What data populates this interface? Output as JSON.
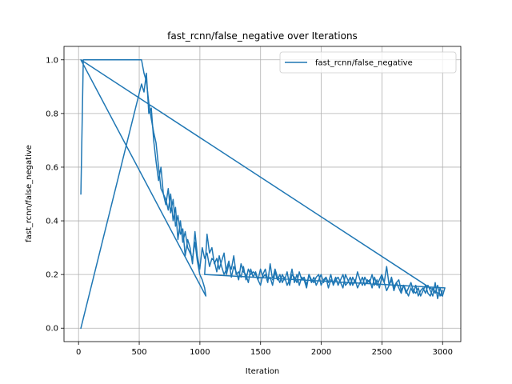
{
  "chart_data": {
    "type": "line",
    "title": "fast_rcnn/false_negative over Iterations",
    "xlabel": "Iteration",
    "ylabel": "fast_rcnn/false_negative",
    "xlim": [
      -120,
      3150
    ],
    "ylim": [
      -0.05,
      1.05
    ],
    "xticks": [
      0,
      500,
      1000,
      1500,
      2000,
      2500,
      3000
    ],
    "yticks": [
      0.0,
      0.2,
      0.4,
      0.6,
      0.8,
      1.0
    ],
    "xtick_labels": [
      "0",
      "500",
      "1000",
      "1500",
      "2000",
      "2500",
      "3000"
    ],
    "ytick_labels": [
      "0.0",
      "0.2",
      "0.4",
      "0.6",
      "0.8",
      "1.0"
    ],
    "grid": true,
    "legend_position": "top-right",
    "series_color": "#1f77b4",
    "series": [
      {
        "name": "fast_rcnn/false_negative",
        "x": [
          19,
          39,
          59,
          79,
          99,
          119,
          139,
          159,
          179,
          199,
          219,
          239,
          259,
          279,
          299,
          319,
          339,
          359,
          379,
          399,
          419,
          439,
          459,
          479,
          499,
          519,
          539,
          559,
          579,
          599,
          619,
          639,
          659,
          679,
          699,
          719,
          739,
          759,
          779,
          799,
          819,
          839,
          859,
          879,
          899,
          919,
          939,
          959,
          979,
          999,
          1019,
          1039,
          1049,
          19,
          2999,
          3019,
          1039,
          1059,
          1079,
          1099,
          1119,
          1139,
          1159,
          1179,
          1199,
          1219,
          1239,
          1259,
          1279,
          1299,
          1319,
          1339,
          1359,
          1379,
          1399,
          1419,
          1439,
          1459,
          1479,
          1499,
          1519,
          1539,
          1559,
          1579,
          1599,
          1619,
          1639,
          1659,
          1679,
          1699,
          1719,
          1739,
          1759,
          1779,
          1799,
          1819,
          1839,
          1859,
          1879,
          1899,
          1919,
          1939,
          1959,
          1979,
          1999,
          2019,
          2039,
          2059,
          2079,
          2099,
          2119,
          2139,
          2159,
          2179,
          2199,
          2219,
          2239,
          2259,
          2279,
          2299,
          2319,
          2339,
          2359,
          2379,
          2399,
          2419,
          2439,
          2459,
          2479,
          2499,
          2519,
          2539,
          2559,
          2579,
          2599,
          2619,
          2639,
          2659,
          2679,
          2699,
          2719,
          2739,
          2759,
          2779,
          2799,
          2819,
          2839,
          2859,
          2879,
          2899,
          2919,
          2939,
          2959,
          2979,
          2999
        ],
        "y": [
          0.5,
          1.0,
          1.0,
          1.0,
          1.0,
          1.0,
          1.0,
          1.0,
          1.0,
          1.0,
          1.0,
          1.0,
          1.0,
          1.0,
          1.0,
          1.0,
          1.0,
          1.0,
          1.0,
          1.0,
          1.0,
          1.0,
          1.0,
          1.0,
          1.0,
          1.0,
          0.95,
          0.92,
          0.84,
          0.78,
          0.73,
          0.69,
          0.6,
          0.52,
          0.5,
          0.48,
          0.44,
          0.5,
          0.4,
          0.45,
          0.33,
          0.4,
          0.32,
          0.36,
          0.3,
          0.28,
          0.26,
          0.32,
          0.25,
          0.2,
          0.18,
          0.15,
          0.12,
          1.0,
          0.12,
          0.15,
          0.2,
          0.35,
          0.28,
          0.3,
          0.24,
          0.26,
          0.22,
          0.25,
          0.28,
          0.2,
          0.24,
          0.22,
          0.27,
          0.2,
          0.21,
          0.19,
          0.23,
          0.18,
          0.22,
          0.2,
          0.21,
          0.2,
          0.18,
          0.22,
          0.19,
          0.2,
          0.17,
          0.24,
          0.18,
          0.22,
          0.19,
          0.17,
          0.2,
          0.18,
          0.21,
          0.16,
          0.2,
          0.19,
          0.17,
          0.21,
          0.18,
          0.19,
          0.16,
          0.2,
          0.18,
          0.17,
          0.19,
          0.2,
          0.16,
          0.18,
          0.19,
          0.17,
          0.2,
          0.16,
          0.18,
          0.19,
          0.17,
          0.15,
          0.2,
          0.18,
          0.16,
          0.19,
          0.17,
          0.21,
          0.18,
          0.16,
          0.19,
          0.17,
          0.18,
          0.15,
          0.19,
          0.16,
          0.18,
          0.2,
          0.17,
          0.14,
          0.16,
          0.19,
          0.15,
          0.17,
          0.18,
          0.14,
          0.16,
          0.13,
          0.15,
          0.17,
          0.14,
          0.13,
          0.15,
          0.12,
          0.14,
          0.16,
          0.13,
          0.12,
          0.15,
          0.13,
          0.16,
          0.12,
          0.14
        ]
      },
      {
        "name": "",
        "x": [
          19,
          519,
          539,
          559,
          579,
          599,
          619,
          639,
          659,
          679,
          699,
          719,
          739,
          759,
          779,
          799,
          819,
          839,
          859,
          879,
          899,
          919,
          939,
          959,
          979,
          999,
          1019,
          1039,
          1059,
          1079,
          1099,
          1119,
          1139,
          1159,
          1179,
          1199,
          1219,
          1239,
          1259,
          1279,
          1299,
          1319,
          1339,
          1359,
          1379,
          1399,
          1419,
          1439,
          1459,
          1479,
          1499,
          1519,
          1539,
          1559,
          1579,
          1599,
          1619,
          1639,
          1659,
          1679,
          1699,
          1719,
          1739,
          1759,
          1779,
          1799,
          1819,
          1839,
          1859,
          1879,
          1899,
          1919,
          1939,
          1959,
          1979,
          1999,
          2019,
          2039,
          2059,
          2079,
          2099,
          2119,
          2139,
          2159,
          2179,
          2199,
          2219,
          2239,
          2259,
          2279,
          2299,
          2319,
          2339,
          2359,
          2379,
          2399,
          2419,
          2439,
          2459,
          2479,
          2499,
          2519,
          2539,
          2559,
          2579,
          2599,
          2619,
          2639,
          2659,
          2679,
          2699,
          2719,
          2739,
          2759,
          2779,
          2799,
          2819,
          2839,
          2859,
          2879,
          2899,
          2919,
          2939,
          2959,
          2979,
          2999
        ],
        "y": [
          0.0,
          0.91,
          0.88,
          0.95,
          0.8,
          0.82,
          0.7,
          0.62,
          0.55,
          0.6,
          0.5,
          0.46,
          0.52,
          0.43,
          0.48,
          0.38,
          0.42,
          0.35,
          0.37,
          0.27,
          0.33,
          0.3,
          0.24,
          0.36,
          0.27,
          0.22,
          0.3,
          0.26,
          0.28,
          0.23,
          0.26,
          0.25,
          0.21,
          0.27,
          0.23,
          0.2,
          0.22,
          0.25,
          0.19,
          0.23,
          0.21,
          0.18,
          0.24,
          0.21,
          0.2,
          0.17,
          0.22,
          0.19,
          0.21,
          0.18,
          0.16,
          0.2,
          0.22,
          0.18,
          0.19,
          0.16,
          0.21,
          0.18,
          0.2,
          0.17,
          0.19,
          0.16,
          0.18,
          0.22,
          0.17,
          0.2,
          0.16,
          0.19,
          0.18,
          0.15,
          0.2,
          0.17,
          0.19,
          0.16,
          0.18,
          0.2,
          0.17,
          0.19,
          0.15,
          0.18,
          0.17,
          0.19,
          0.16,
          0.18,
          0.2,
          0.16,
          0.17,
          0.19,
          0.16,
          0.18,
          0.15,
          0.17,
          0.19,
          0.16,
          0.18,
          0.17,
          0.2,
          0.16,
          0.18,
          0.15,
          0.19,
          0.17,
          0.23,
          0.16,
          0.18,
          0.14,
          0.17,
          0.15,
          0.13,
          0.16,
          0.14,
          0.12,
          0.15,
          0.13,
          0.16,
          0.12,
          0.14,
          0.15,
          0.13,
          0.16,
          0.14,
          0.12,
          0.17,
          0.11,
          0.15,
          0.12
        ]
      }
    ]
  }
}
